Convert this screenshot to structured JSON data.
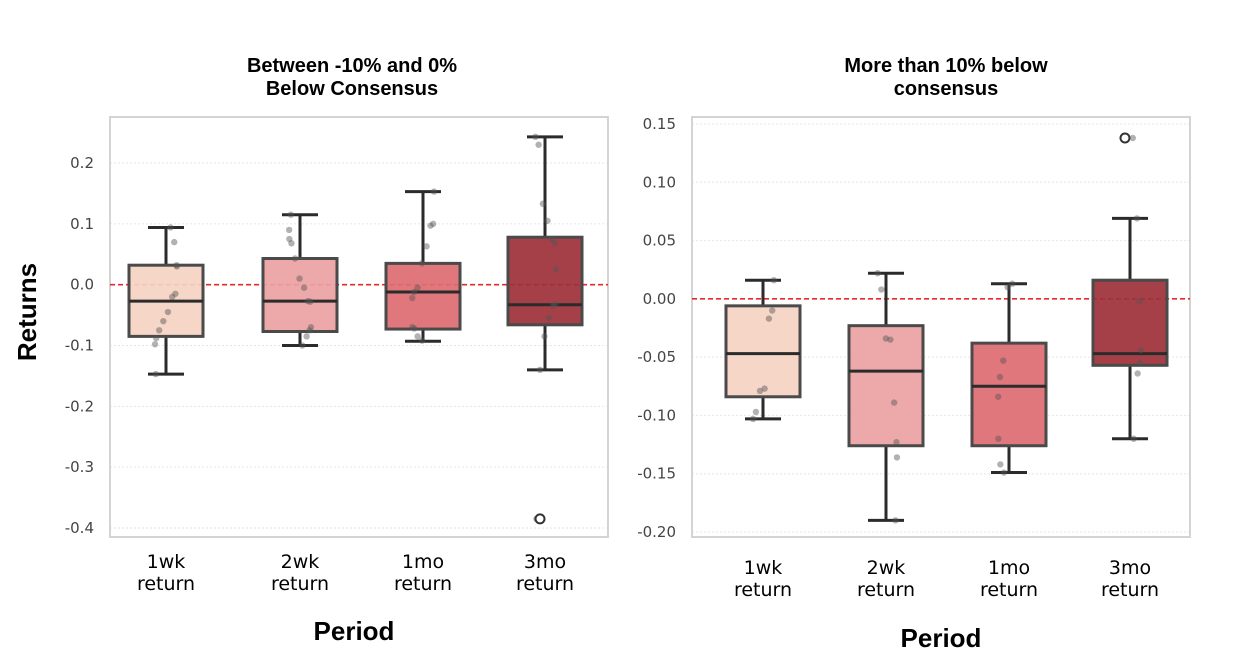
{
  "y_axis_label": "Returns",
  "chart_data": [
    {
      "type": "box",
      "title": [
        "Between -10% and 0%",
        "Below Consensus"
      ],
      "xlabel": "Period",
      "ylabel": "Returns",
      "ylim": [
        -0.41,
        0.265
      ],
      "yticks": [
        0.2,
        0.1,
        0.0,
        -0.1,
        -0.2,
        -0.3,
        -0.4
      ],
      "ytick_labels": [
        "0.2",
        "0.1",
        "0.0",
        "-0.1",
        "-0.2",
        "-0.3",
        "-0.4"
      ],
      "reference_line": 0.0,
      "grid": "horizontal",
      "categories": [
        {
          "label": [
            "1wk",
            "return"
          ],
          "color": "#f5d3c2",
          "box": {
            "whisker_low": -0.147,
            "q1": -0.085,
            "median": -0.027,
            "q3": 0.032,
            "whisker_high": 0.094
          },
          "outliers": [],
          "points": [
            0.094,
            0.07,
            0.032,
            0.03,
            -0.015,
            -0.02,
            -0.045,
            -0.06,
            -0.075,
            -0.088,
            -0.098,
            -0.147
          ]
        },
        {
          "label": [
            "2wk",
            "return"
          ],
          "color": "#eba2a2",
          "box": {
            "whisker_low": -0.1,
            "q1": -0.077,
            "median": -0.027,
            "q3": 0.043,
            "whisker_high": 0.115
          },
          "outliers": [],
          "points": [
            0.115,
            0.09,
            0.075,
            0.068,
            0.043,
            0.01,
            -0.005,
            -0.027,
            -0.028,
            -0.07,
            -0.075,
            -0.085,
            -0.1
          ]
        },
        {
          "label": [
            "1mo",
            "return"
          ],
          "color": "#dd6b71",
          "box": {
            "whisker_low": -0.093,
            "q1": -0.073,
            "median": -0.012,
            "q3": 0.035,
            "whisker_high": 0.153
          },
          "outliers": [],
          "points": [
            0.153,
            0.1,
            0.097,
            0.063,
            0.035,
            -0.005,
            -0.012,
            -0.022,
            -0.07,
            -0.072,
            -0.085,
            -0.092
          ]
        },
        {
          "label": [
            "3mo",
            "return"
          ],
          "color": "#9e3038",
          "box": {
            "whisker_low": -0.14,
            "q1": -0.066,
            "median": -0.033,
            "q3": 0.078,
            "whisker_high": 0.243
          },
          "outliers": [
            -0.385
          ],
          "points": [
            0.243,
            0.23,
            0.133,
            0.105,
            0.075,
            0.068,
            0.025,
            -0.032,
            -0.035,
            -0.055,
            -0.085,
            -0.14,
            -0.385
          ]
        }
      ]
    },
    {
      "type": "box",
      "title": [
        "More than 10% below",
        "consensus"
      ],
      "xlabel": "Period",
      "ylabel": "",
      "ylim": [
        -0.205,
        0.155
      ],
      "yticks": [
        0.15,
        0.1,
        0.05,
        0.0,
        -0.05,
        -0.1,
        -0.15,
        -0.2
      ],
      "ytick_labels": [
        "0.15",
        "0.10",
        "0.05",
        "0.00",
        "-0.05",
        "-0.10",
        "-0.15",
        "-0.20"
      ],
      "reference_line": 0.0,
      "grid": "horizontal",
      "categories": [
        {
          "label": [
            "1wk",
            "return"
          ],
          "color": "#f5d3c2",
          "box": {
            "whisker_low": -0.103,
            "q1": -0.084,
            "median": -0.047,
            "q3": -0.006,
            "whisker_high": 0.016
          },
          "outliers": [],
          "points": [
            0.016,
            -0.01,
            -0.017,
            -0.077,
            -0.079,
            -0.097,
            -0.103
          ]
        },
        {
          "label": [
            "2wk",
            "return"
          ],
          "color": "#eba2a2",
          "box": {
            "whisker_low": -0.19,
            "q1": -0.126,
            "median": -0.062,
            "q3": -0.023,
            "whisker_high": 0.022
          },
          "outliers": [],
          "points": [
            0.022,
            0.008,
            -0.034,
            -0.035,
            -0.089,
            -0.123,
            -0.136,
            -0.19
          ]
        },
        {
          "label": [
            "1mo",
            "return"
          ],
          "color": "#dd6b71",
          "box": {
            "whisker_low": -0.149,
            "q1": -0.126,
            "median": -0.075,
            "q3": -0.038,
            "whisker_high": 0.013
          },
          "outliers": [],
          "points": [
            0.013,
            0.01,
            -0.053,
            -0.067,
            -0.084,
            -0.12,
            -0.142,
            -0.149
          ]
        },
        {
          "label": [
            "3mo",
            "return"
          ],
          "color": "#9e3038",
          "box": {
            "whisker_low": -0.12,
            "q1": -0.057,
            "median": -0.047,
            "q3": 0.016,
            "whisker_high": 0.069
          },
          "outliers": [
            0.138
          ],
          "points": [
            0.138,
            0.069,
            -0.002,
            -0.044,
            -0.055,
            -0.064,
            -0.12
          ]
        }
      ]
    }
  ]
}
